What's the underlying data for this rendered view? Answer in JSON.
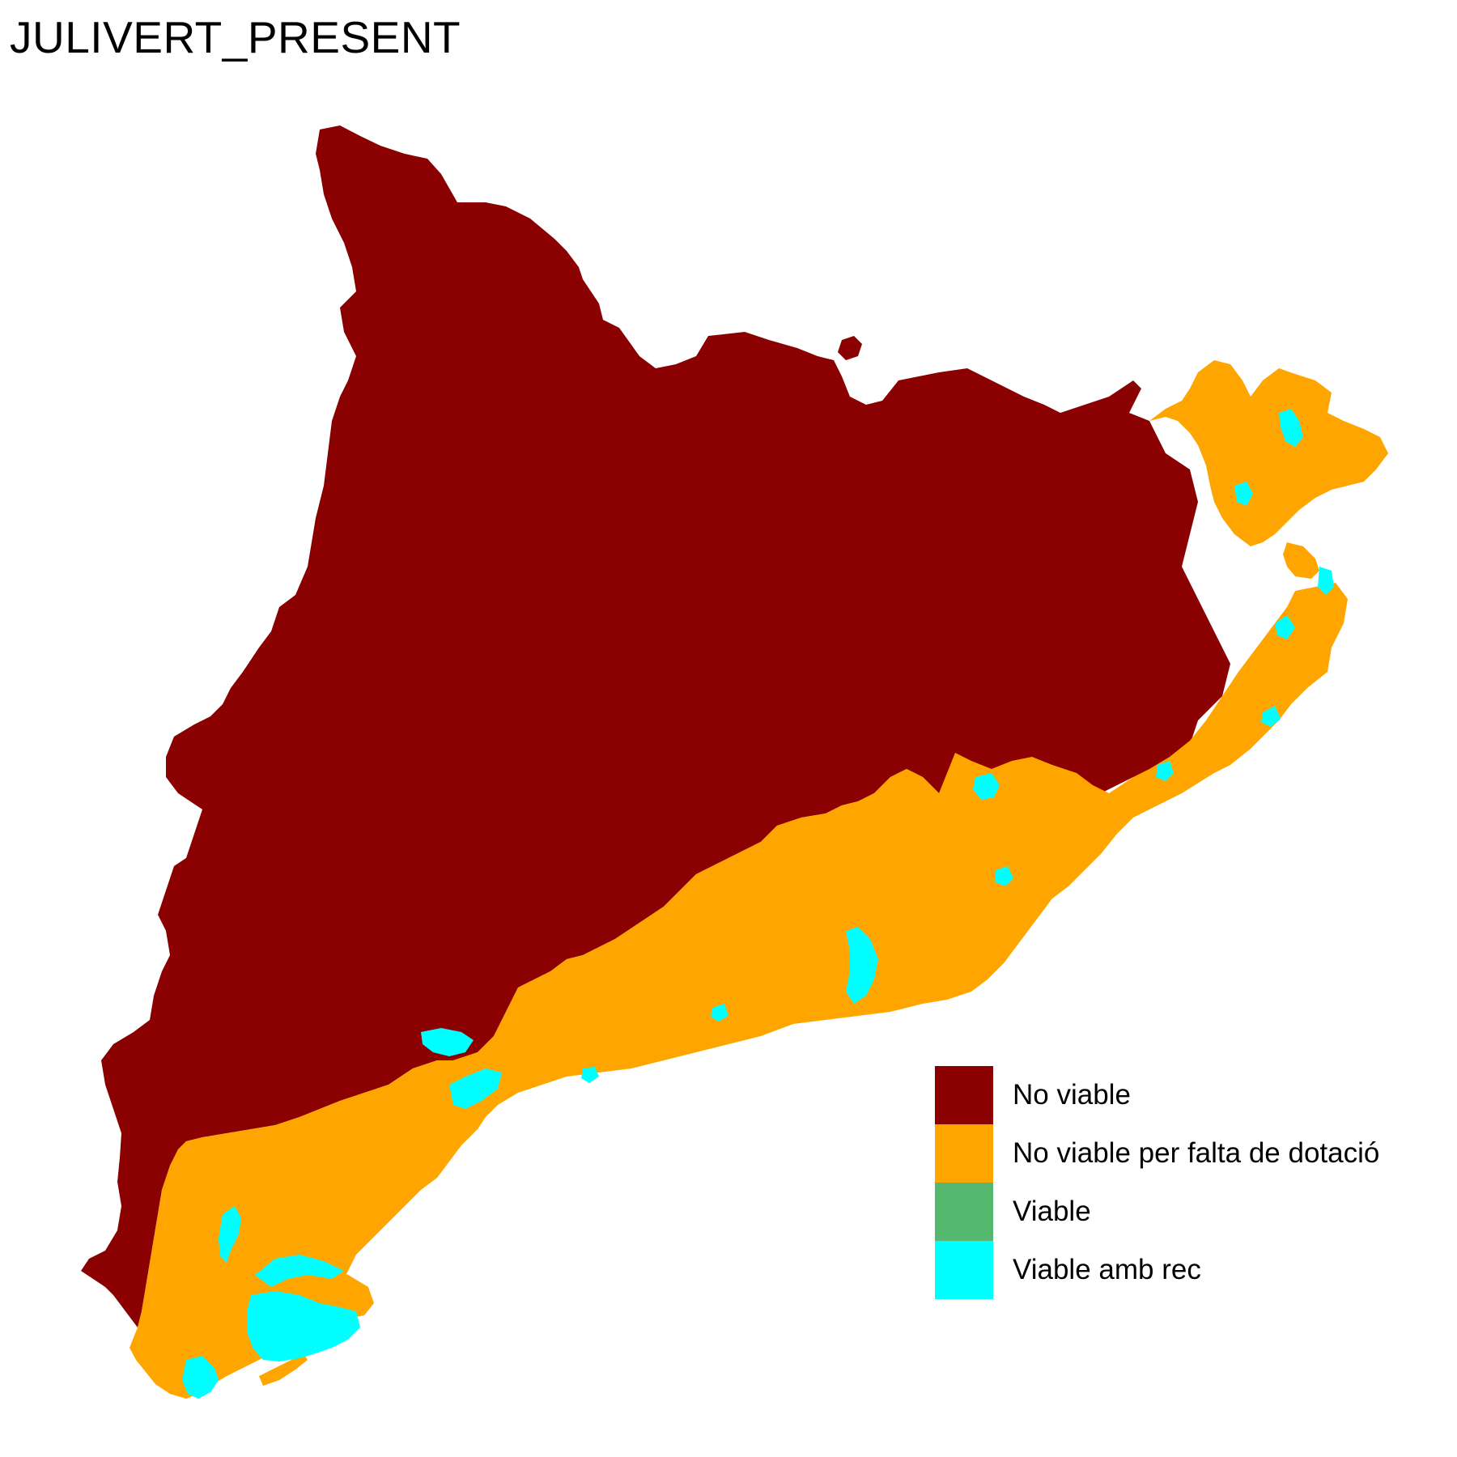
{
  "map": {
    "title": "JULIVERT_PRESENT"
  },
  "legend": {
    "items": [
      {
        "label": "No viable",
        "color": "#8B0000"
      },
      {
        "label": "No viable per falta de dotació",
        "color": "#FFA500"
      },
      {
        "label": "Viable",
        "color": "#54B86E"
      },
      {
        "label": "Viable amb rec",
        "color": "#00FFFF"
      }
    ]
  }
}
